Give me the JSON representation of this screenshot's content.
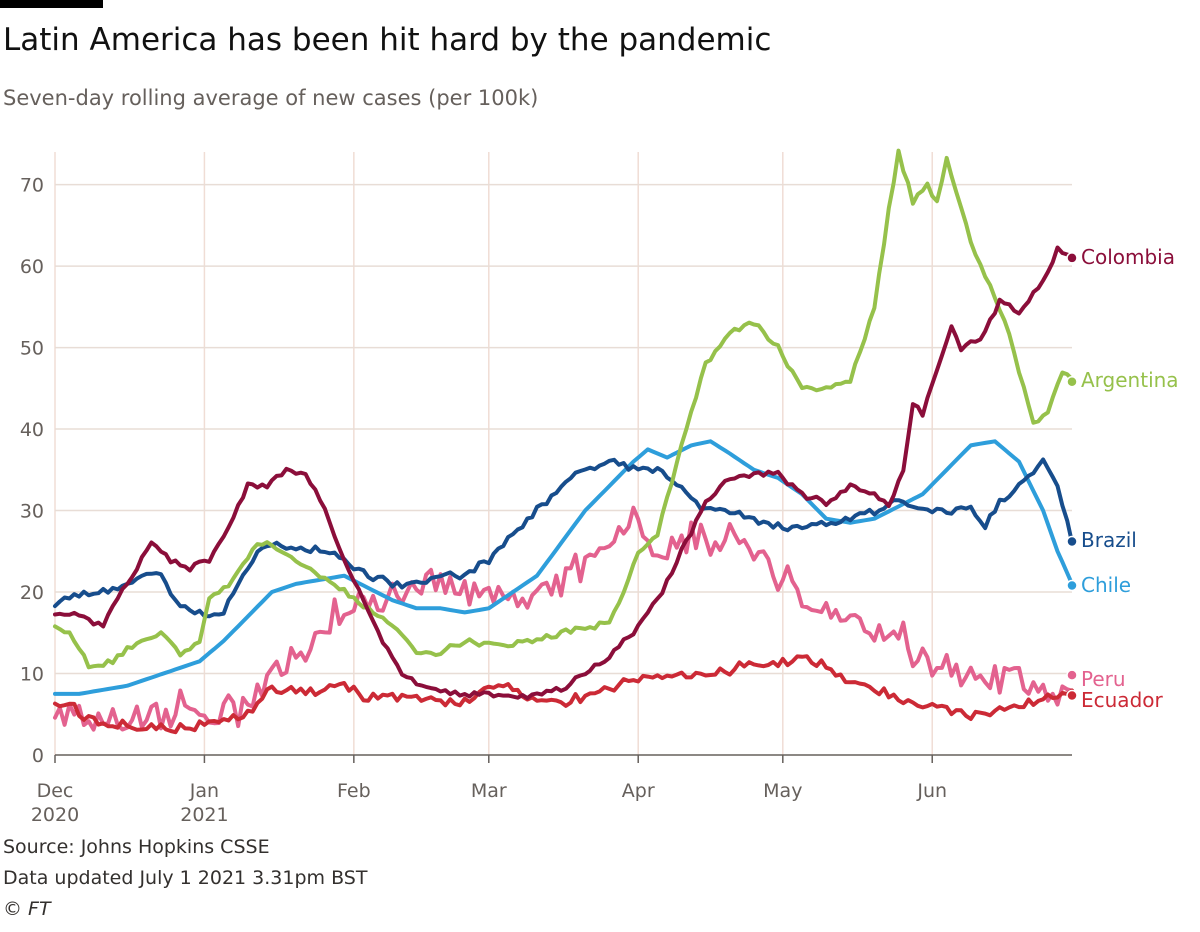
{
  "title": "Latin America has been hit hard by the pandemic",
  "subtitle": "Seven-day rolling average of new cases (per 100k)",
  "footer": {
    "source": "Source: Johns Hopkins CSSE",
    "updated": "Data updated July 1 2021 3.31pm BST",
    "copyright": "© FT"
  },
  "chart_data": {
    "type": "line",
    "title": "Latin America has been hit hard by the pandemic",
    "ylabel": "Seven-day rolling average of new cases (per 100k)",
    "xlabel": "",
    "ylim": [
      0,
      74
    ],
    "xlim": [
      0,
      211
    ],
    "x_unit": "days since Dec 1 2020",
    "yticks": [
      0,
      10,
      20,
      30,
      40,
      50,
      60,
      70
    ],
    "xticks": [
      {
        "day": 0,
        "line1": "Dec",
        "line2": "2020"
      },
      {
        "day": 31,
        "line1": "Jan",
        "line2": "2021"
      },
      {
        "day": 62,
        "line1": "Feb",
        "line2": ""
      },
      {
        "day": 90,
        "line1": "Mar",
        "line2": ""
      },
      {
        "day": 121,
        "line1": "Apr",
        "line2": ""
      },
      {
        "day": 151,
        "line1": "May",
        "line2": ""
      },
      {
        "day": 182,
        "line1": "Jun",
        "line2": ""
      }
    ],
    "grid": true,
    "series": [
      {
        "name": "Peru",
        "color": "#e3628f",
        "noise": 2.4,
        "label_value": 9.8,
        "points": [
          [
            0,
            5
          ],
          [
            5,
            5
          ],
          [
            10,
            4.5
          ],
          [
            15,
            4.5
          ],
          [
            20,
            5
          ],
          [
            25,
            6
          ],
          [
            30,
            5
          ],
          [
            35,
            5
          ],
          [
            40,
            6
          ],
          [
            45,
            10
          ],
          [
            50,
            13
          ],
          [
            55,
            15
          ],
          [
            58,
            17
          ],
          [
            62,
            19
          ],
          [
            65,
            18
          ],
          [
            70,
            20
          ],
          [
            75,
            21
          ],
          [
            80,
            21
          ],
          [
            85,
            21
          ],
          [
            90,
            20
          ],
          [
            95,
            19
          ],
          [
            100,
            20
          ],
          [
            105,
            21
          ],
          [
            110,
            23
          ],
          [
            115,
            25
          ],
          [
            118,
            28
          ],
          [
            121,
            28
          ],
          [
            125,
            25
          ],
          [
            130,
            26
          ],
          [
            135,
            27
          ],
          [
            140,
            26
          ],
          [
            145,
            25
          ],
          [
            150,
            22
          ],
          [
            155,
            19
          ],
          [
            160,
            17
          ],
          [
            165,
            17
          ],
          [
            170,
            16
          ],
          [
            175,
            15
          ],
          [
            180,
            12
          ],
          [
            185,
            11
          ],
          [
            190,
            10
          ],
          [
            195,
            9.5
          ],
          [
            200,
            9.5
          ],
          [
            205,
            9
          ],
          [
            208,
            8.5
          ],
          [
            211,
            8.5
          ]
        ]
      },
      {
        "name": "Ecuador",
        "color": "#cc2a36",
        "noise": 0.7,
        "label_value": 7.3,
        "points": [
          [
            0,
            6.5
          ],
          [
            3,
            6
          ],
          [
            8,
            4
          ],
          [
            15,
            3.5
          ],
          [
            25,
            3
          ],
          [
            30,
            3.5
          ],
          [
            35,
            4.5
          ],
          [
            40,
            5
          ],
          [
            45,
            8
          ],
          [
            50,
            8
          ],
          [
            55,
            8
          ],
          [
            60,
            8.5
          ],
          [
            65,
            7
          ],
          [
            70,
            7
          ],
          [
            75,
            7
          ],
          [
            80,
            6.5
          ],
          [
            85,
            6.5
          ],
          [
            90,
            8.5
          ],
          [
            95,
            8
          ],
          [
            98,
            7
          ],
          [
            105,
            6.5
          ],
          [
            110,
            7
          ],
          [
            115,
            8.5
          ],
          [
            120,
            9
          ],
          [
            125,
            9.5
          ],
          [
            130,
            9.5
          ],
          [
            135,
            10
          ],
          [
            140,
            10.5
          ],
          [
            145,
            11
          ],
          [
            150,
            11.5
          ],
          [
            155,
            12
          ],
          [
            160,
            11
          ],
          [
            165,
            9
          ],
          [
            170,
            8
          ],
          [
            175,
            7
          ],
          [
            180,
            6
          ],
          [
            185,
            5.5
          ],
          [
            190,
            5
          ],
          [
            195,
            5.5
          ],
          [
            200,
            6
          ],
          [
            205,
            6.5
          ],
          [
            208,
            7.5
          ],
          [
            211,
            8
          ]
        ]
      },
      {
        "name": "Chile",
        "color": "#2e9edb",
        "noise": 0,
        "label_value": 20.8,
        "points": [
          [
            0,
            7.5
          ],
          [
            5,
            7.5
          ],
          [
            10,
            8
          ],
          [
            15,
            8.5
          ],
          [
            20,
            9.5
          ],
          [
            25,
            10.5
          ],
          [
            30,
            11.5
          ],
          [
            35,
            14
          ],
          [
            40,
            17
          ],
          [
            45,
            20
          ],
          [
            50,
            21
          ],
          [
            55,
            21.5
          ],
          [
            60,
            22
          ],
          [
            65,
            20.5
          ],
          [
            70,
            19
          ],
          [
            75,
            18
          ],
          [
            80,
            18
          ],
          [
            85,
            17.5
          ],
          [
            90,
            18
          ],
          [
            95,
            20
          ],
          [
            100,
            22
          ],
          [
            105,
            26
          ],
          [
            110,
            30
          ],
          [
            115,
            33
          ],
          [
            120,
            36
          ],
          [
            123,
            37.5
          ],
          [
            127,
            36.5
          ],
          [
            132,
            38
          ],
          [
            136,
            38.5
          ],
          [
            140,
            37
          ],
          [
            145,
            35
          ],
          [
            150,
            34
          ],
          [
            155,
            32
          ],
          [
            160,
            29
          ],
          [
            165,
            28.5
          ],
          [
            170,
            29
          ],
          [
            175,
            30.5
          ],
          [
            180,
            32
          ],
          [
            185,
            35
          ],
          [
            190,
            38
          ],
          [
            195,
            38.5
          ],
          [
            200,
            36
          ],
          [
            205,
            30
          ],
          [
            208,
            25
          ],
          [
            211,
            21
          ]
        ]
      },
      {
        "name": "Brazil",
        "color": "#174d8c",
        "noise": 0.5,
        "label_value": 26.2,
        "points": [
          [
            0,
            18.5
          ],
          [
            5,
            19.5
          ],
          [
            10,
            20
          ],
          [
            15,
            21
          ],
          [
            20,
            22.5
          ],
          [
            22,
            22
          ],
          [
            25,
            19
          ],
          [
            28,
            18
          ],
          [
            31,
            17
          ],
          [
            35,
            17.5
          ],
          [
            38,
            21
          ],
          [
            42,
            25
          ],
          [
            46,
            26
          ],
          [
            50,
            25.5
          ],
          [
            55,
            25
          ],
          [
            60,
            24
          ],
          [
            65,
            22
          ],
          [
            70,
            21
          ],
          [
            75,
            21
          ],
          [
            80,
            22
          ],
          [
            85,
            22
          ],
          [
            90,
            24
          ],
          [
            95,
            27
          ],
          [
            100,
            30
          ],
          [
            105,
            33
          ],
          [
            110,
            35
          ],
          [
            115,
            36
          ],
          [
            120,
            35
          ],
          [
            125,
            35
          ],
          [
            130,
            33
          ],
          [
            135,
            30
          ],
          [
            140,
            30
          ],
          [
            145,
            29
          ],
          [
            150,
            28
          ],
          [
            155,
            28
          ],
          [
            160,
            28.5
          ],
          [
            165,
            29
          ],
          [
            170,
            30
          ],
          [
            175,
            31
          ],
          [
            180,
            30
          ],
          [
            185,
            30
          ],
          [
            190,
            30
          ],
          [
            193,
            28
          ],
          [
            196,
            31
          ],
          [
            200,
            33
          ],
          [
            205,
            36
          ],
          [
            208,
            33
          ],
          [
            211,
            26
          ]
        ]
      },
      {
        "name": "Argentina",
        "color": "#96c14b",
        "noise": 0.4,
        "label_value": 45.8,
        "points": [
          [
            0,
            16
          ],
          [
            3,
            15
          ],
          [
            7,
            11
          ],
          [
            12,
            11.5
          ],
          [
            15,
            13
          ],
          [
            22,
            15
          ],
          [
            26,
            12.5
          ],
          [
            30,
            14
          ],
          [
            32,
            19
          ],
          [
            36,
            21
          ],
          [
            40,
            24
          ],
          [
            42,
            26
          ],
          [
            46,
            25.5
          ],
          [
            50,
            24
          ],
          [
            55,
            22
          ],
          [
            60,
            20
          ],
          [
            65,
            18
          ],
          [
            70,
            16
          ],
          [
            75,
            12.5
          ],
          [
            80,
            12.5
          ],
          [
            85,
            14
          ],
          [
            90,
            13.5
          ],
          [
            95,
            13.5
          ],
          [
            100,
            14
          ],
          [
            105,
            15
          ],
          [
            110,
            15.5
          ],
          [
            115,
            16.5
          ],
          [
            118,
            20
          ],
          [
            121,
            25
          ],
          [
            125,
            27
          ],
          [
            130,
            38
          ],
          [
            135,
            48
          ],
          [
            140,
            52
          ],
          [
            145,
            53
          ],
          [
            150,
            50
          ],
          [
            155,
            45
          ],
          [
            160,
            45
          ],
          [
            165,
            46
          ],
          [
            170,
            55
          ],
          [
            173,
            67
          ],
          [
            175,
            74
          ],
          [
            178,
            68
          ],
          [
            181,
            70
          ],
          [
            183,
            68
          ],
          [
            185,
            73.5
          ],
          [
            190,
            63
          ],
          [
            195,
            56
          ],
          [
            198,
            52
          ],
          [
            200,
            47
          ],
          [
            203,
            41
          ],
          [
            206,
            42
          ],
          [
            209,
            47
          ],
          [
            211,
            46
          ]
        ]
      },
      {
        "name": "Colombia",
        "color": "#8b0e3a",
        "noise": 0.4,
        "label_value": 61,
        "points": [
          [
            0,
            17.5
          ],
          [
            5,
            17
          ],
          [
            10,
            16
          ],
          [
            15,
            21
          ],
          [
            18,
            24
          ],
          [
            20,
            26
          ],
          [
            24,
            24
          ],
          [
            28,
            23
          ],
          [
            32,
            24
          ],
          [
            36,
            28
          ],
          [
            40,
            33
          ],
          [
            44,
            33
          ],
          [
            48,
            35
          ],
          [
            52,
            34.5
          ],
          [
            56,
            30
          ],
          [
            60,
            24
          ],
          [
            64,
            19
          ],
          [
            68,
            14
          ],
          [
            72,
            10
          ],
          [
            76,
            8.5
          ],
          [
            80,
            8
          ],
          [
            85,
            7.5
          ],
          [
            90,
            7.5
          ],
          [
            95,
            7
          ],
          [
            100,
            7.5
          ],
          [
            105,
            8
          ],
          [
            110,
            10
          ],
          [
            115,
            12
          ],
          [
            120,
            15
          ],
          [
            125,
            19
          ],
          [
            130,
            25
          ],
          [
            135,
            31
          ],
          [
            140,
            34
          ],
          [
            145,
            34.5
          ],
          [
            150,
            34.5
          ],
          [
            155,
            32
          ],
          [
            160,
            31
          ],
          [
            165,
            33
          ],
          [
            170,
            32
          ],
          [
            173,
            30.5
          ],
          [
            176,
            35
          ],
          [
            178,
            43
          ],
          [
            180,
            42
          ],
          [
            183,
            47
          ],
          [
            186,
            53
          ],
          [
            188,
            50
          ],
          [
            192,
            51
          ],
          [
            196,
            55.5
          ],
          [
            200,
            54.5
          ],
          [
            205,
            58
          ],
          [
            208,
            62
          ],
          [
            211,
            61
          ]
        ]
      }
    ]
  }
}
